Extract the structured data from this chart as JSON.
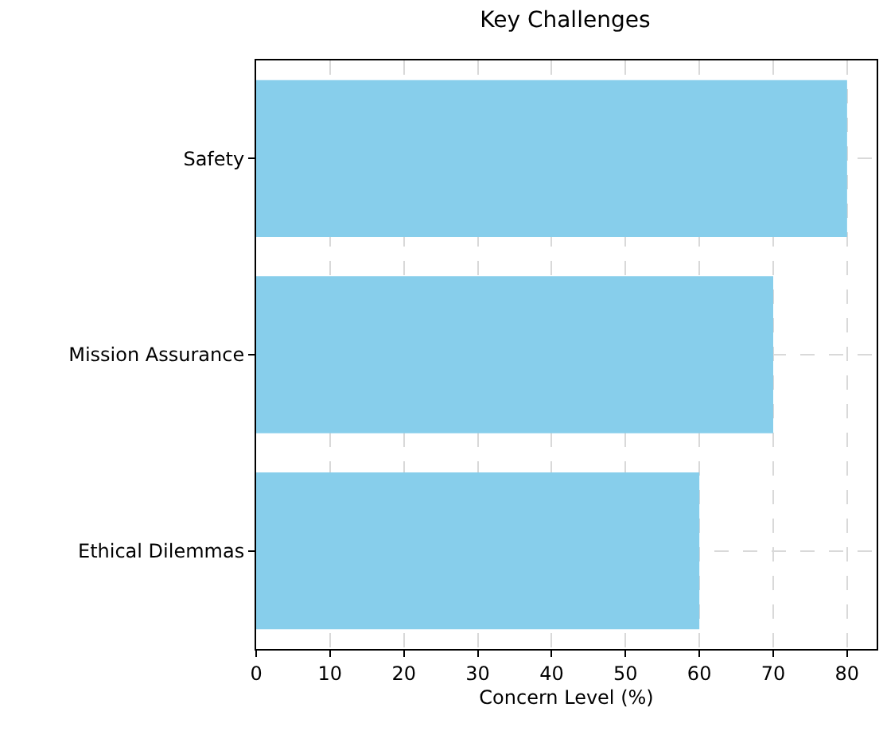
{
  "chart_data": {
    "type": "bar",
    "orientation": "horizontal",
    "title": "Key Challenges",
    "xlabel": "Concern Level (%)",
    "categories": [
      "Safety",
      "Mission Assurance",
      "Ethical Dilemmas"
    ],
    "values": [
      80,
      70,
      60
    ],
    "color": "#87ceeb",
    "xlim": [
      0,
      84
    ],
    "xticks": [
      0,
      10,
      20,
      30,
      40,
      50,
      60,
      70,
      80
    ],
    "grid": true,
    "line_style": "dashed"
  }
}
